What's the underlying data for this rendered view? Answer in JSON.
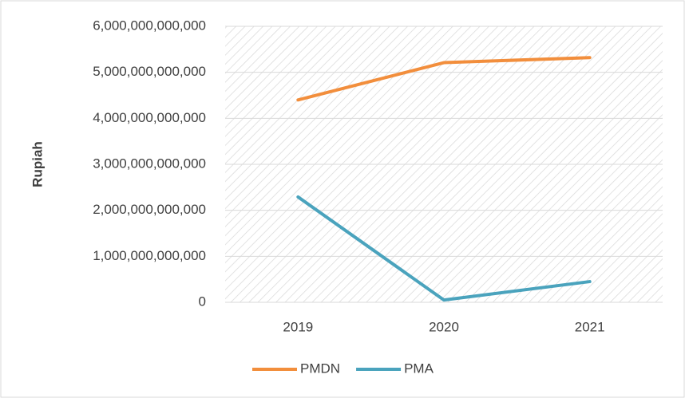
{
  "chart_data": {
    "type": "line",
    "y_label": "Rupiah",
    "categories": [
      "2019",
      "2020",
      "2021"
    ],
    "series": [
      {
        "name": "PMDN",
        "color": "#f28e3c",
        "values": [
          4400000000000,
          5210000000000,
          5320000000000
        ]
      },
      {
        "name": "PMA",
        "color": "#4aa3bd",
        "values": [
          2290000000000,
          50000000000,
          450000000000
        ]
      }
    ],
    "ylim": [
      0,
      6000000000000
    ],
    "yticks": [
      0,
      {
        "value": 1000000000000,
        "label": "1,000,000,000,000"
      },
      {
        "value": 2000000000000,
        "label": "2,000,000,000,000"
      },
      {
        "value": 3000000000000,
        "label": "3,000,000,000,000"
      },
      {
        "value": 4000000000000,
        "label": "4,000,000,000,000"
      },
      {
        "value": 5000000000000,
        "label": "5,000,000,000,000"
      },
      {
        "value": 6000000000000,
        "label": "6,000,000,000,000"
      }
    ],
    "grid": true,
    "legend": "bottom"
  }
}
